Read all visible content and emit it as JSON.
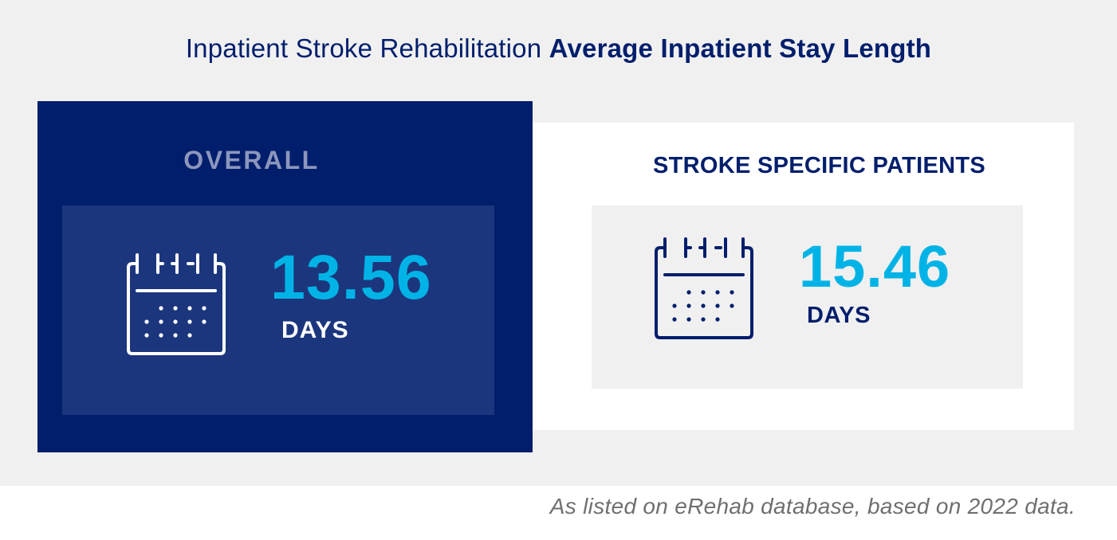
{
  "title": {
    "regular": "Inpatient Stroke Rehabilitation ",
    "bold": "Average Inpatient Stay Length"
  },
  "cards": {
    "overall": {
      "heading": "OVERALL",
      "value": "13.56",
      "unit": "DAYS",
      "icon": "calendar-icon"
    },
    "stroke": {
      "heading": "STROKE SPECIFIC PATIENTS",
      "value": "15.46",
      "unit": "DAYS",
      "icon": "calendar-icon"
    }
  },
  "footnote": "As listed on eRehab database, based on 2022 data.",
  "colors": {
    "navy": "#001e6c",
    "navy_inner": "#1c367e",
    "accent_blue": "#00b3e6",
    "light_gray": "#f0f0f0",
    "footnote_gray": "#6f6f6f"
  }
}
